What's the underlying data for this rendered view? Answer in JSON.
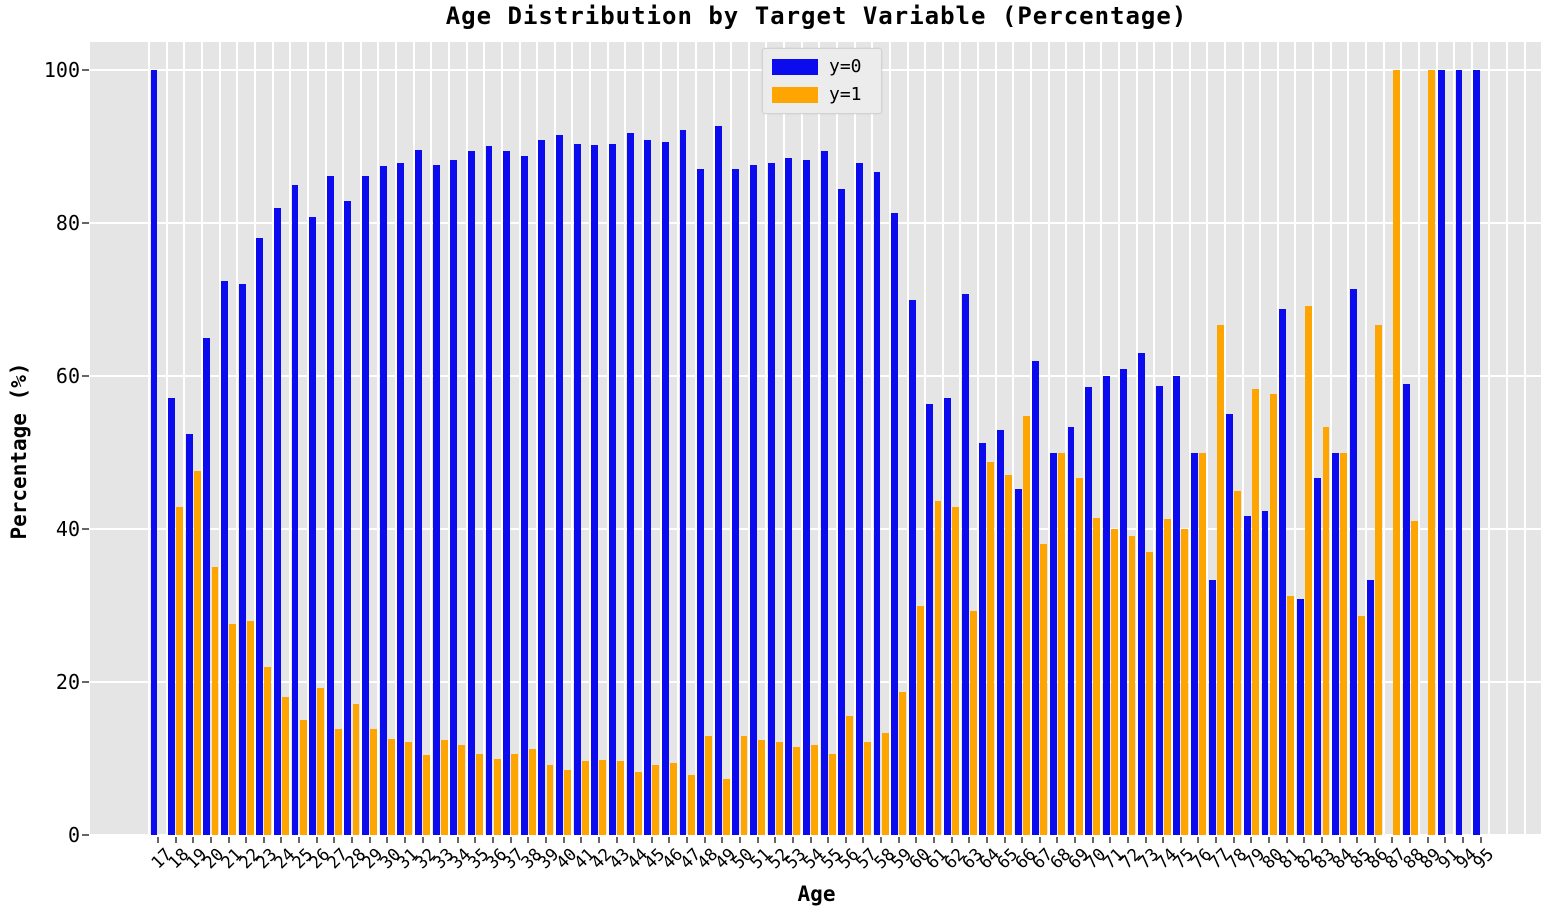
{
  "colors": {
    "figure_bg": "#ffffff",
    "plot_bg": "#e5e5e5",
    "gridline": "#ffffff",
    "tick": "#666666",
    "text": "#000000",
    "legend_bg": "#ececec",
    "series_y0": "#0b0bee",
    "series_y1": "#ffa502"
  },
  "chart_data": {
    "type": "bar",
    "title": "Age Distribution by Target Variable (Percentage)",
    "xlabel": "Age",
    "ylabel": "Percentage (%)",
    "ylim": [
      0,
      104
    ],
    "yticks": [
      0,
      20,
      40,
      60,
      80,
      100
    ],
    "grid": true,
    "legend_position": "upper center",
    "categories": [
      "17",
      "18",
      "19",
      "20",
      "21",
      "22",
      "23",
      "24",
      "25",
      "26",
      "27",
      "28",
      "29",
      "30",
      "31",
      "32",
      "33",
      "34",
      "35",
      "36",
      "37",
      "38",
      "39",
      "40",
      "41",
      "42",
      "43",
      "44",
      "45",
      "46",
      "47",
      "48",
      "49",
      "50",
      "51",
      "52",
      "53",
      "54",
      "55",
      "56",
      "57",
      "58",
      "59",
      "60",
      "61",
      "62",
      "63",
      "64",
      "65",
      "66",
      "67",
      "68",
      "69",
      "70",
      "71",
      "72",
      "73",
      "74",
      "75",
      "76",
      "77",
      "78",
      "79",
      "80",
      "81",
      "82",
      "83",
      "84",
      "85",
      "86",
      "87",
      "88",
      "89",
      "91",
      "94",
      "95"
    ],
    "series": [
      {
        "name": "y=0",
        "color": "#0b0bee",
        "values": [
          100,
          57.1,
          52.4,
          65.0,
          72.4,
          72.0,
          78.0,
          82.0,
          85.0,
          80.8,
          86.1,
          82.9,
          86.2,
          87.4,
          87.8,
          89.5,
          87.6,
          88.2,
          89.4,
          90.1,
          89.4,
          88.8,
          90.9,
          91.5,
          90.3,
          90.2,
          90.3,
          91.7,
          90.9,
          90.6,
          92.2,
          87.0,
          92.7,
          87.0,
          87.6,
          87.9,
          88.5,
          88.2,
          89.4,
          84.5,
          87.9,
          86.7,
          81.3,
          70.0,
          56.3,
          57.1,
          70.7,
          51.2,
          52.9,
          45.2,
          61.9,
          50.0,
          53.3,
          58.5,
          60.0,
          60.9,
          63.0,
          58.7,
          60.0,
          50.0,
          33.3,
          55.0,
          41.7,
          42.3,
          68.8,
          30.8,
          46.7,
          50.0,
          71.4,
          33.3,
          null,
          59.0,
          null,
          100,
          100,
          100
        ]
      },
      {
        "name": "y=1",
        "color": "#ffa502",
        "values": [
          null,
          42.9,
          47.6,
          35.0,
          27.6,
          28.0,
          22.0,
          18.0,
          15.0,
          19.2,
          13.9,
          17.1,
          13.8,
          12.6,
          12.2,
          10.5,
          12.4,
          11.8,
          10.6,
          9.9,
          10.6,
          11.2,
          9.1,
          8.5,
          9.7,
          9.8,
          9.7,
          8.3,
          9.1,
          9.4,
          7.8,
          13.0,
          7.3,
          13.0,
          12.4,
          12.1,
          11.5,
          11.8,
          10.6,
          15.5,
          12.1,
          13.3,
          18.7,
          30.0,
          43.7,
          42.9,
          29.3,
          48.8,
          47.1,
          54.8,
          38.1,
          50.0,
          46.7,
          41.5,
          40.0,
          39.1,
          37.0,
          41.3,
          40.0,
          50.0,
          66.7,
          45.0,
          58.3,
          57.7,
          31.2,
          69.2,
          53.3,
          50.0,
          28.6,
          66.7,
          100,
          41.0,
          100,
          null,
          null,
          null
        ]
      }
    ]
  }
}
